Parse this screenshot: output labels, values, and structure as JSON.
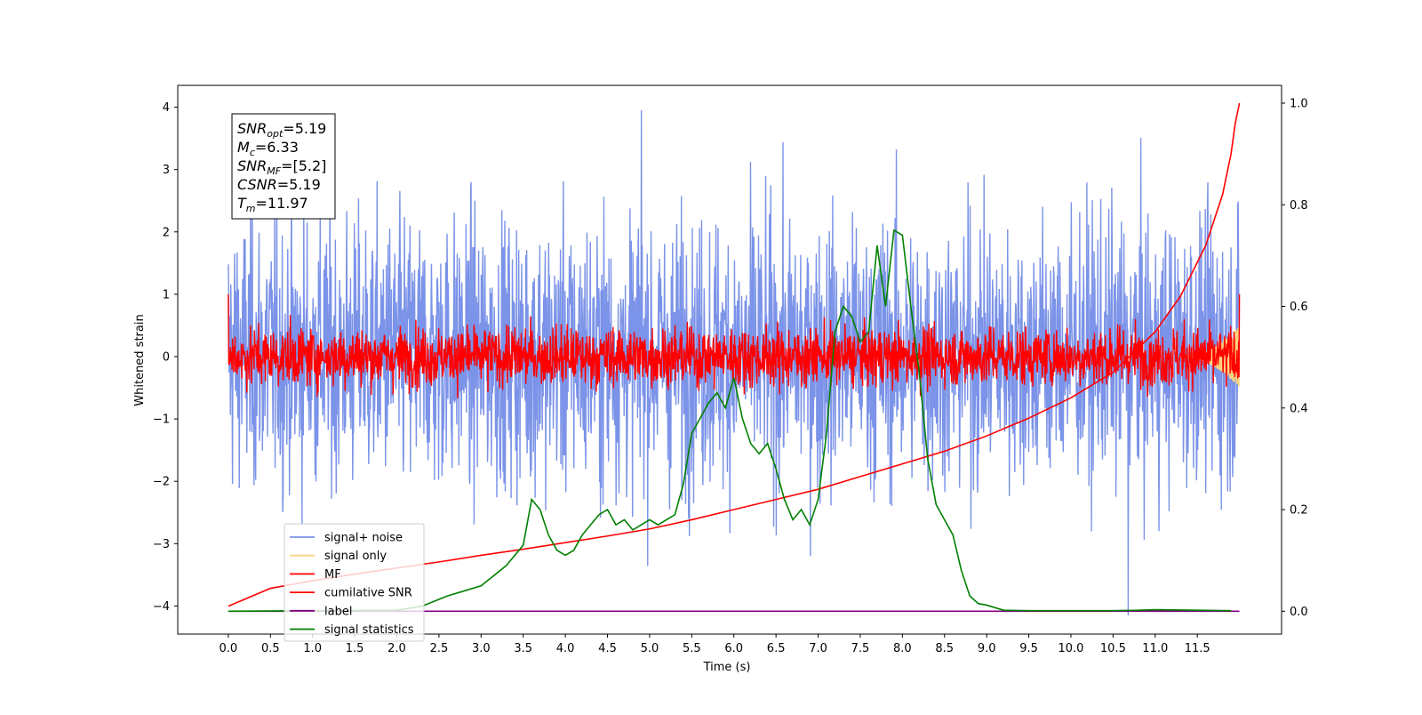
{
  "chart_data": {
    "type": "line",
    "xlabel": "Time (s)",
    "ylabel": "Whitened strain",
    "xlim": [
      -0.6,
      12.5
    ],
    "ylim": [
      -4.45,
      4.35
    ],
    "y2lim": [
      -0.045,
      1.035
    ],
    "x_ticks": [
      "0.0",
      "0.5",
      "1.0",
      "1.5",
      "2.0",
      "2.5",
      "3.0",
      "3.5",
      "4.0",
      "4.5",
      "5.0",
      "5.5",
      "6.0",
      "6.5",
      "7.0",
      "7.5",
      "8.0",
      "8.5",
      "9.0",
      "9.5",
      "10.0",
      "10.5",
      "11.0",
      "11.5"
    ],
    "y_ticks": [
      "4",
      "3",
      "2",
      "1",
      "0",
      "−1",
      "−2",
      "−3",
      "−4"
    ],
    "y2_ticks": [
      "1.0",
      "0.8",
      "0.6",
      "0.4",
      "0.2",
      "0.0"
    ],
    "annotations": [
      {
        "base": "SNR",
        "sub": "opt",
        "value": "=5.19"
      },
      {
        "base": "M",
        "sub": "c",
        "value": "=6.33"
      },
      {
        "base": "SNR",
        "sub": "MF",
        "value": "=[5.2]"
      },
      {
        "base": "CSNR",
        "sub": "",
        "value": "=5.19"
      },
      {
        "base": "T",
        "sub": "m",
        "value": "=11.97"
      }
    ],
    "legend": {
      "placement": "lower-left",
      "entries": [
        {
          "label": "signal+ noise",
          "color": "#7b93e8"
        },
        {
          "label": "signal only",
          "color": "#fcd27e"
        },
        {
          "label": "MF",
          "color": "#ff0000"
        },
        {
          "label": "cumilative SNR",
          "color": "#ff0000"
        },
        {
          "label": "label",
          "color": "#800080"
        },
        {
          "label": "signal statistics",
          "color": "#008000"
        }
      ]
    },
    "series": [
      {
        "name": "signal+ noise",
        "axis": "left",
        "color": "#7b93e8",
        "kind": "noise",
        "x_range": [
          0,
          12.0
        ],
        "center": 0.05,
        "typical_amplitude": 1.6,
        "peak_max": 3.95
      },
      {
        "name": "signal only",
        "axis": "left",
        "color": "#fcd27e",
        "kind": "chirp",
        "x_range": [
          11.3,
          12.0
        ],
        "max_amplitude": 0.5
      },
      {
        "name": "MF",
        "axis": "left",
        "color": "#ff0000",
        "kind": "noise",
        "x_range": [
          0,
          12.0
        ],
        "center": 0.0,
        "typical_amplitude": 0.35,
        "peak_max": 1.0
      },
      {
        "name": "cumilative SNR",
        "axis": "right",
        "color": "#ff0000",
        "x": [
          0,
          0.5,
          1,
          1.5,
          2,
          2.5,
          3,
          3.5,
          4,
          4.5,
          5,
          5.5,
          6,
          6.5,
          7,
          7.5,
          8,
          8.5,
          9,
          9.5,
          10,
          10.5,
          11,
          11.3,
          11.6,
          11.8,
          11.9,
          11.95,
          12.0
        ],
        "values": [
          0.01,
          0.045,
          0.06,
          0.073,
          0.085,
          0.097,
          0.11,
          0.122,
          0.135,
          0.148,
          0.162,
          0.18,
          0.2,
          0.22,
          0.24,
          0.265,
          0.29,
          0.315,
          0.345,
          0.38,
          0.42,
          0.47,
          0.55,
          0.62,
          0.72,
          0.82,
          0.9,
          0.96,
          1.0
        ]
      },
      {
        "name": "label",
        "axis": "right",
        "color": "#800080",
        "x": [
          0,
          12.0
        ],
        "values": [
          0.0,
          0.0
        ]
      },
      {
        "name": "signal statistics",
        "axis": "right",
        "color": "#008000",
        "x": [
          0,
          1,
          2,
          2.3,
          2.6,
          3,
          3.3,
          3.5,
          3.6,
          3.7,
          3.8,
          3.9,
          4,
          4.1,
          4.2,
          4.3,
          4.4,
          4.5,
          4.6,
          4.7,
          4.8,
          4.9,
          5,
          5.1,
          5.2,
          5.3,
          5.4,
          5.5,
          5.6,
          5.7,
          5.8,
          5.9,
          6,
          6.1,
          6.2,
          6.3,
          6.4,
          6.5,
          6.6,
          6.7,
          6.8,
          6.9,
          7,
          7.1,
          7.2,
          7.3,
          7.4,
          7.5,
          7.6,
          7.7,
          7.8,
          7.9,
          8,
          8.1,
          8.2,
          8.3,
          8.4,
          8.5,
          8.6,
          8.7,
          8.8,
          8.9,
          9,
          9.2,
          9.5,
          10,
          10.5,
          10.8,
          11,
          11.5,
          11.9
        ],
        "values": [
          0,
          0.001,
          0.002,
          0.01,
          0.03,
          0.05,
          0.09,
          0.13,
          0.22,
          0.2,
          0.15,
          0.12,
          0.11,
          0.12,
          0.15,
          0.17,
          0.19,
          0.2,
          0.17,
          0.18,
          0.16,
          0.17,
          0.18,
          0.17,
          0.18,
          0.19,
          0.25,
          0.35,
          0.38,
          0.41,
          0.43,
          0.4,
          0.46,
          0.38,
          0.33,
          0.31,
          0.33,
          0.28,
          0.22,
          0.18,
          0.2,
          0.17,
          0.22,
          0.35,
          0.55,
          0.6,
          0.58,
          0.53,
          0.55,
          0.72,
          0.6,
          0.75,
          0.74,
          0.6,
          0.47,
          0.3,
          0.21,
          0.18,
          0.15,
          0.08,
          0.03,
          0.015,
          0.012,
          0.002,
          0.001,
          0.001,
          0.001,
          0.002,
          0.003,
          0.002,
          0.001
        ]
      }
    ]
  }
}
